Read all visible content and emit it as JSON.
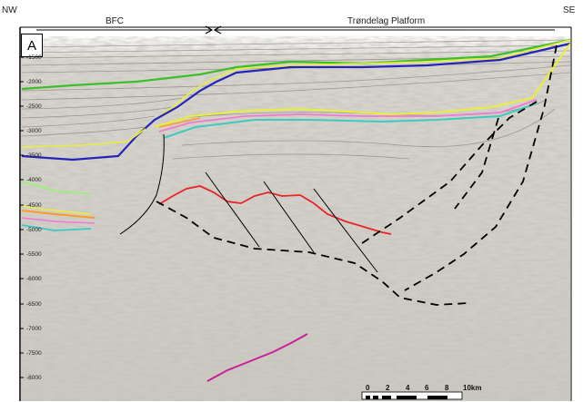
{
  "corner_labels": {
    "left": "NW",
    "right": "SE"
  },
  "regions": [
    {
      "name": "BFC"
    },
    {
      "name": "Trøndelag Platform"
    }
  ],
  "panel_label": "A",
  "depth_ticks": [
    "-1500",
    "-2000",
    "-2500",
    "-3000",
    "-3500",
    "-4000",
    "-4500",
    "-5000",
    "-5500",
    "-6000",
    "-6500",
    "-7000",
    "-7500",
    "-8000"
  ],
  "scale_bar": {
    "labels": [
      "0",
      "2",
      "4",
      "6",
      "8",
      "10km"
    ]
  },
  "colors": {
    "green": "#3cbf2a",
    "yellow": "#e8ee3a",
    "blue": "#2424b8",
    "pink": "#f07ad0",
    "cyan": "#3ec9c2",
    "orange": "#ff9a2a",
    "lightgreen": "#9af07a",
    "red": "#e8232a",
    "magenta": "#c8209a",
    "seismic_bg": "#cfccc6"
  }
}
